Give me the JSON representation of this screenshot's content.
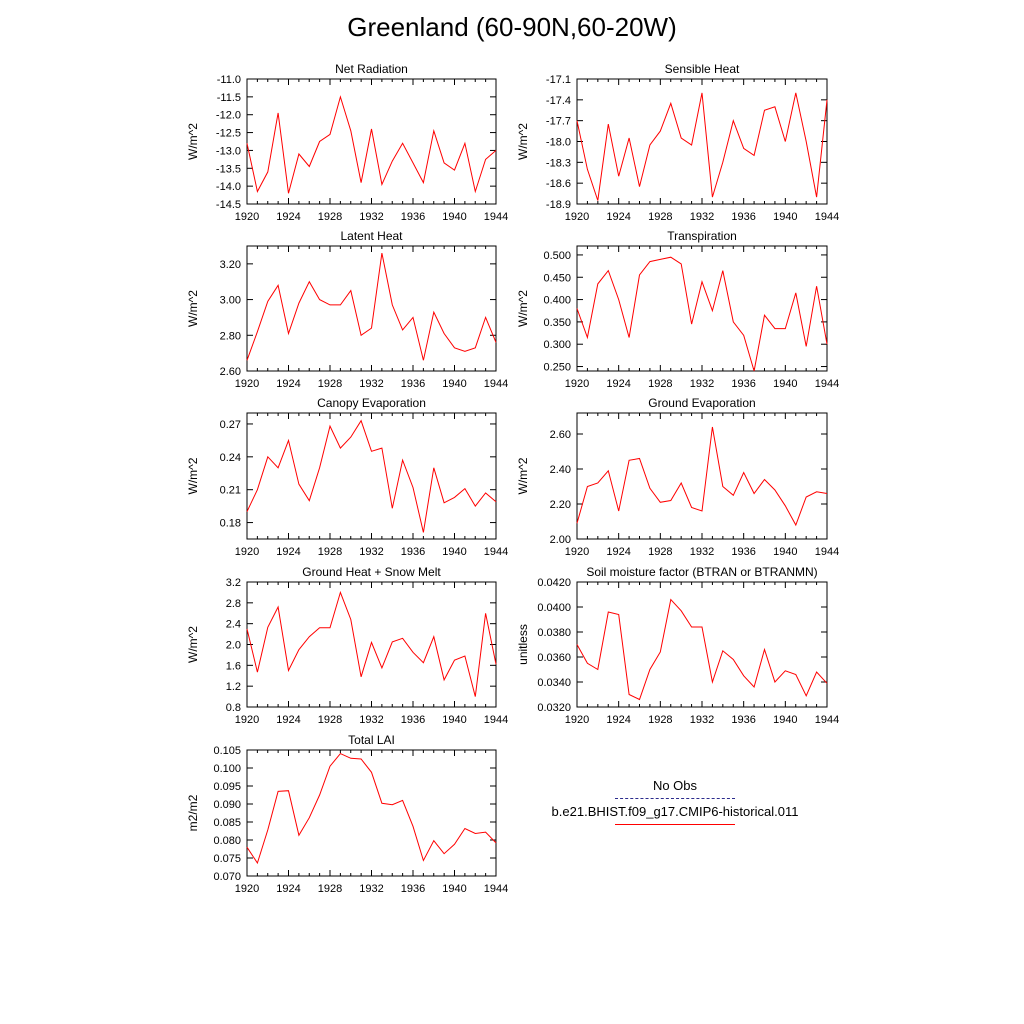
{
  "title": "Greenland (60-90N,60-20W)",
  "legend": [
    {
      "label": "No Obs",
      "style": "dashed",
      "color": "#2b2b8c"
    },
    {
      "label": "b.e21.BHIST.f09_g17.CMIP6-historical.011",
      "style": "solid",
      "color": "#ff0000"
    }
  ],
  "chart_data": [
    {
      "type": "line",
      "title": "Net Radiation",
      "ylabel": "W/m^2",
      "xlim": [
        1920,
        1944
      ],
      "xticks": [
        "1920",
        "1924",
        "1928",
        "1932",
        "1936",
        "1940",
        "1944"
      ],
      "ylim": [
        -14.5,
        -11.0
      ],
      "yticks": [
        "-14.5",
        "-14.0",
        "-13.5",
        "-13.0",
        "-12.5",
        "-12.0",
        "-11.5",
        "-11.0"
      ],
      "x": [
        1920,
        1921,
        1922,
        1923,
        1924,
        1925,
        1926,
        1927,
        1928,
        1929,
        1930,
        1931,
        1932,
        1933,
        1934,
        1935,
        1936,
        1937,
        1938,
        1939,
        1940,
        1941,
        1942,
        1943,
        1944
      ],
      "series": [
        {
          "name": "b.e21.BHIST.f09_g17.CMIP6-historical.011",
          "color": "#ff0000",
          "values": [
            -12.8,
            -14.15,
            -13.6,
            -11.95,
            -14.2,
            -13.1,
            -13.45,
            -12.75,
            -12.55,
            -11.5,
            -12.45,
            -13.9,
            -12.4,
            -13.95,
            -13.3,
            -12.8,
            -13.35,
            -13.9,
            -12.45,
            -13.35,
            -13.55,
            -12.8,
            -14.15,
            -13.25,
            -13.0
          ]
        }
      ]
    },
    {
      "type": "line",
      "title": "Sensible Heat",
      "ylabel": "W/m^2",
      "xlim": [
        1920,
        1944
      ],
      "xticks": [
        "1920",
        "1924",
        "1928",
        "1932",
        "1936",
        "1940",
        "1944"
      ],
      "ylim": [
        -18.9,
        -17.1
      ],
      "yticks": [
        "-18.9",
        "-18.6",
        "-18.3",
        "-18.0",
        "-17.7",
        "-17.4",
        "-17.1"
      ],
      "x": [
        1920,
        1921,
        1922,
        1923,
        1924,
        1925,
        1926,
        1927,
        1928,
        1929,
        1930,
        1931,
        1932,
        1933,
        1934,
        1935,
        1936,
        1937,
        1938,
        1939,
        1940,
        1941,
        1942,
        1943,
        1944
      ],
      "series": [
        {
          "name": "b.e21.BHIST.f09_g17.CMIP6-historical.011",
          "color": "#ff0000",
          "values": [
            -17.7,
            -18.4,
            -18.85,
            -17.75,
            -18.5,
            -17.95,
            -18.65,
            -18.05,
            -17.85,
            -17.45,
            -17.95,
            -18.05,
            -17.3,
            -18.8,
            -18.3,
            -17.7,
            -18.1,
            -18.2,
            -17.55,
            -17.5,
            -18.0,
            -17.3,
            -18.0,
            -18.8,
            -17.4
          ]
        }
      ]
    },
    {
      "type": "line",
      "title": "Latent Heat",
      "ylabel": "W/m^2",
      "xlim": [
        1920,
        1944
      ],
      "xticks": [
        "1920",
        "1924",
        "1928",
        "1932",
        "1936",
        "1940",
        "1944"
      ],
      "ylim": [
        2.6,
        3.3
      ],
      "yticks": [
        "2.60",
        "2.80",
        "3.00",
        "3.20"
      ],
      "x": [
        1920,
        1921,
        1922,
        1923,
        1924,
        1925,
        1926,
        1927,
        1928,
        1929,
        1930,
        1931,
        1932,
        1933,
        1934,
        1935,
        1936,
        1937,
        1938,
        1939,
        1940,
        1941,
        1942,
        1943,
        1944
      ],
      "series": [
        {
          "name": "b.e21.BHIST.f09_g17.CMIP6-historical.011",
          "color": "#ff0000",
          "values": [
            2.66,
            2.82,
            2.99,
            3.08,
            2.81,
            2.98,
            3.1,
            3.0,
            2.97,
            2.97,
            3.05,
            2.8,
            2.84,
            3.26,
            2.97,
            2.83,
            2.9,
            2.66,
            2.93,
            2.81,
            2.73,
            2.71,
            2.73,
            2.9,
            2.76
          ]
        }
      ]
    },
    {
      "type": "line",
      "title": "Transpiration",
      "ylabel": "W/m^2",
      "xlim": [
        1920,
        1944
      ],
      "xticks": [
        "1920",
        "1924",
        "1928",
        "1932",
        "1936",
        "1940",
        "1944"
      ],
      "ylim": [
        0.24,
        0.52
      ],
      "yticks": [
        "0.250",
        "0.300",
        "0.350",
        "0.400",
        "0.450",
        "0.500"
      ],
      "x": [
        1920,
        1921,
        1922,
        1923,
        1924,
        1925,
        1926,
        1927,
        1928,
        1929,
        1930,
        1931,
        1932,
        1933,
        1934,
        1935,
        1936,
        1937,
        1938,
        1939,
        1940,
        1941,
        1942,
        1943,
        1944
      ],
      "series": [
        {
          "name": "b.e21.BHIST.f09_g17.CMIP6-historical.011",
          "color": "#ff0000",
          "values": [
            0.38,
            0.315,
            0.435,
            0.465,
            0.4,
            0.315,
            0.455,
            0.485,
            0.49,
            0.495,
            0.48,
            0.345,
            0.44,
            0.375,
            0.465,
            0.35,
            0.32,
            0.24,
            0.365,
            0.335,
            0.335,
            0.415,
            0.295,
            0.43,
            0.3
          ]
        }
      ]
    },
    {
      "type": "line",
      "title": "Canopy Evaporation",
      "ylabel": "W/m^2",
      "xlim": [
        1920,
        1944
      ],
      "xticks": [
        "1920",
        "1924",
        "1928",
        "1932",
        "1936",
        "1940",
        "1944"
      ],
      "ylim": [
        0.165,
        0.28
      ],
      "yticks": [
        "0.18",
        "0.21",
        "0.24",
        "0.27"
      ],
      "x": [
        1920,
        1921,
        1922,
        1923,
        1924,
        1925,
        1926,
        1927,
        1928,
        1929,
        1930,
        1931,
        1932,
        1933,
        1934,
        1935,
        1936,
        1937,
        1938,
        1939,
        1940,
        1941,
        1942,
        1943,
        1944
      ],
      "series": [
        {
          "name": "b.e21.BHIST.f09_g17.CMIP6-historical.011",
          "color": "#ff0000",
          "values": [
            0.19,
            0.21,
            0.24,
            0.23,
            0.255,
            0.215,
            0.2,
            0.23,
            0.268,
            0.248,
            0.258,
            0.273,
            0.245,
            0.248,
            0.193,
            0.237,
            0.212,
            0.171,
            0.23,
            0.198,
            0.203,
            0.211,
            0.195,
            0.207,
            0.199
          ]
        }
      ]
    },
    {
      "type": "line",
      "title": "Ground Evaporation",
      "ylabel": "W/m^2",
      "xlim": [
        1920,
        1944
      ],
      "xticks": [
        "1920",
        "1924",
        "1928",
        "1932",
        "1936",
        "1940",
        "1944"
      ],
      "ylim": [
        2.0,
        2.72
      ],
      "yticks": [
        "2.00",
        "2.20",
        "2.40",
        "2.60"
      ],
      "x": [
        1920,
        1921,
        1922,
        1923,
        1924,
        1925,
        1926,
        1927,
        1928,
        1929,
        1930,
        1931,
        1932,
        1933,
        1934,
        1935,
        1936,
        1937,
        1938,
        1939,
        1940,
        1941,
        1942,
        1943,
        1944
      ],
      "series": [
        {
          "name": "b.e21.BHIST.f09_g17.CMIP6-historical.011",
          "color": "#ff0000",
          "values": [
            2.09,
            2.3,
            2.32,
            2.39,
            2.16,
            2.45,
            2.46,
            2.29,
            2.21,
            2.22,
            2.32,
            2.18,
            2.16,
            2.64,
            2.3,
            2.25,
            2.38,
            2.26,
            2.34,
            2.28,
            2.19,
            2.08,
            2.24,
            2.27,
            2.26
          ]
        }
      ]
    },
    {
      "type": "line",
      "title": "Ground Heat + Snow Melt",
      "ylabel": "W/m^2",
      "xlim": [
        1920,
        1944
      ],
      "xticks": [
        "1920",
        "1924",
        "1928",
        "1932",
        "1936",
        "1940",
        "1944"
      ],
      "ylim": [
        0.8,
        3.2
      ],
      "yticks": [
        "0.8",
        "1.2",
        "1.6",
        "2.0",
        "2.4",
        "2.8",
        "3.2"
      ],
      "x": [
        1920,
        1921,
        1922,
        1923,
        1924,
        1925,
        1926,
        1927,
        1928,
        1929,
        1930,
        1931,
        1932,
        1933,
        1934,
        1935,
        1936,
        1937,
        1938,
        1939,
        1940,
        1941,
        1942,
        1943,
        1944
      ],
      "series": [
        {
          "name": "b.e21.BHIST.f09_g17.CMIP6-historical.011",
          "color": "#ff0000",
          "values": [
            2.3,
            1.47,
            2.33,
            2.72,
            1.5,
            1.9,
            2.15,
            2.32,
            2.32,
            3.0,
            2.48,
            1.38,
            2.04,
            1.55,
            2.05,
            2.12,
            1.85,
            1.65,
            2.15,
            1.32,
            1.7,
            1.78,
            1.0,
            2.6,
            1.62
          ]
        }
      ]
    },
    {
      "type": "line",
      "title": "Soil moisture factor (BTRAN or BTRANMN)",
      "ylabel": "unitless",
      "xlim": [
        1920,
        1944
      ],
      "xticks": [
        "1920",
        "1924",
        "1928",
        "1932",
        "1936",
        "1940",
        "1944"
      ],
      "ylim": [
        0.032,
        0.042
      ],
      "yticks": [
        "0.0320",
        "0.0340",
        "0.0360",
        "0.0380",
        "0.0400",
        "0.0420"
      ],
      "x": [
        1920,
        1921,
        1922,
        1923,
        1924,
        1925,
        1926,
        1927,
        1928,
        1929,
        1930,
        1931,
        1932,
        1933,
        1934,
        1935,
        1936,
        1937,
        1938,
        1939,
        1940,
        1941,
        1942,
        1943,
        1944
      ],
      "series": [
        {
          "name": "b.e21.BHIST.f09_g17.CMIP6-historical.011",
          "color": "#ff0000",
          "values": [
            0.037,
            0.0355,
            0.035,
            0.0396,
            0.0394,
            0.033,
            0.0326,
            0.035,
            0.0364,
            0.0406,
            0.0397,
            0.0384,
            0.0384,
            0.034,
            0.0365,
            0.0358,
            0.0345,
            0.0336,
            0.0366,
            0.034,
            0.0349,
            0.0346,
            0.0329,
            0.0348,
            0.0339
          ]
        }
      ]
    },
    {
      "type": "line",
      "title": "Total LAI",
      "ylabel": "m2/m2",
      "xlim": [
        1920,
        1944
      ],
      "xticks": [
        "1920",
        "1924",
        "1928",
        "1932",
        "1936",
        "1940",
        "1944"
      ],
      "ylim": [
        0.07,
        0.105
      ],
      "yticks": [
        "0.070",
        "0.075",
        "0.080",
        "0.085",
        "0.090",
        "0.095",
        "0.100",
        "0.105"
      ],
      "x": [
        1920,
        1921,
        1922,
        1923,
        1924,
        1925,
        1926,
        1927,
        1928,
        1929,
        1930,
        1931,
        1932,
        1933,
        1934,
        1935,
        1936,
        1937,
        1938,
        1939,
        1940,
        1941,
        1942,
        1943,
        1944
      ],
      "series": [
        {
          "name": "b.e21.BHIST.f09_g17.CMIP6-historical.011",
          "color": "#ff0000",
          "values": [
            0.078,
            0.0736,
            0.0828,
            0.0935,
            0.0937,
            0.0813,
            0.0862,
            0.0925,
            0.1005,
            0.104,
            0.1027,
            0.1025,
            0.0988,
            0.0902,
            0.0898,
            0.091,
            0.0838,
            0.0743,
            0.0798,
            0.0762,
            0.0788,
            0.0832,
            0.0818,
            0.0822,
            0.0792
          ]
        }
      ]
    }
  ]
}
